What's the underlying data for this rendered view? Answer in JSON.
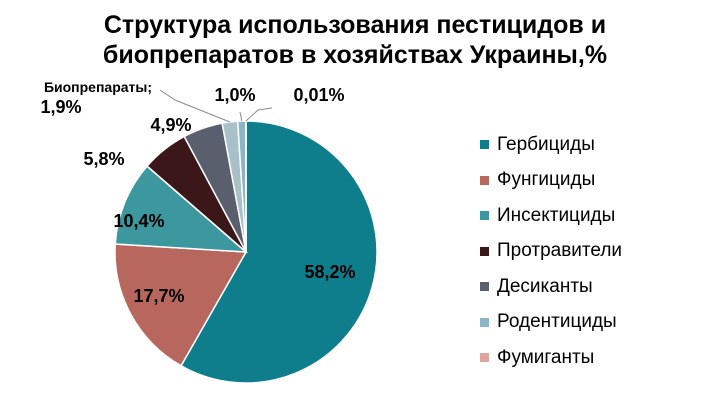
{
  "chart_data": {
    "type": "pie",
    "title": "Структура использования пестицидов и биопрепаратов в хозяйствах Украины,%",
    "title_lines": [
      "Структура использования пестицидов и",
      "биопрепаратов в хозяйствах Украины,%"
    ],
    "legend_position": "right",
    "slices": [
      {
        "name": "Гербициды",
        "value": 58.2,
        "label": "58,2%",
        "color": "#0E7D8C",
        "in_legend": true
      },
      {
        "name": "Фунгициды",
        "value": 17.7,
        "label": "17,7%",
        "color": "#B8675E",
        "in_legend": true
      },
      {
        "name": "Инсектициды",
        "value": 10.4,
        "label": "10,4%",
        "color": "#3D979E",
        "in_legend": true
      },
      {
        "name": "Протравители",
        "value": 5.8,
        "label": "5,8%",
        "color": "#3B1719",
        "in_legend": true
      },
      {
        "name": "Десиканты",
        "value": 4.9,
        "label": "4,9%",
        "color": "#5A5F6E",
        "in_legend": true
      },
      {
        "name": "Родентициды",
        "value": 1.0,
        "label": "1,0%",
        "color": "#8CB6C6",
        "in_legend": true
      },
      {
        "name": "Фумиганты",
        "value": 0.01,
        "label": "0,01%",
        "color": "#DFA59E",
        "in_legend": true
      },
      {
        "name": "Биопрепараты",
        "value": 1.9,
        "label": "1,9%",
        "label_prefix": "Биопрепараты;",
        "color": "#A8C0C8",
        "in_legend": false
      }
    ]
  }
}
